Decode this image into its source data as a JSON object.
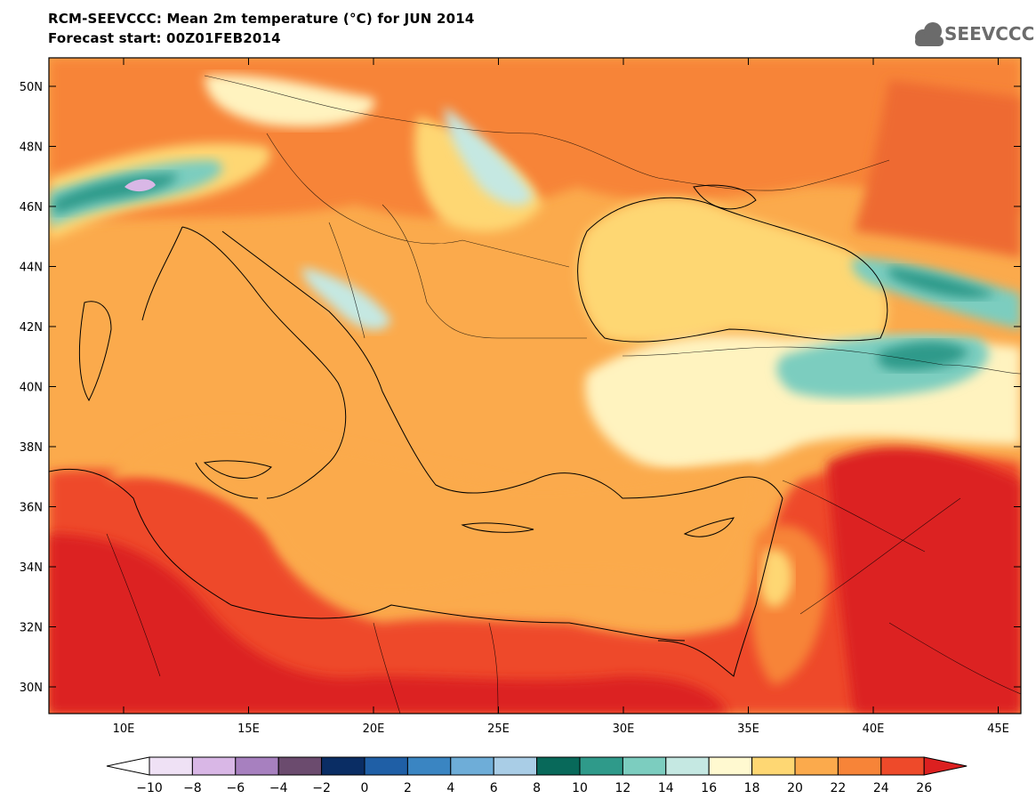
{
  "header": {
    "title_line1": "RCM-SEEVCCC: Mean 2m temperature (°C) for JUN 2014",
    "title_line2": "Forecast start: 00Z01FEB2014",
    "logo_text": "SEEVCCC"
  },
  "map": {
    "lat_labels": [
      "50N",
      "48N",
      "46N",
      "44N",
      "42N",
      "40N",
      "38N",
      "36N",
      "34N",
      "32N",
      "30N"
    ],
    "lon_labels": [
      "10E",
      "15E",
      "20E",
      "25E",
      "30E",
      "35E",
      "40E",
      "45E"
    ]
  },
  "colorbar": {
    "labels": [
      "−10",
      "−8",
      "−6",
      "−4",
      "−2",
      "0",
      "2",
      "4",
      "6",
      "8",
      "10",
      "12",
      "14",
      "16",
      "18",
      "20",
      "22",
      "24",
      "26"
    ],
    "colors": [
      "#ffffff",
      "#efe1f5",
      "#d9b7e6",
      "#a780bf",
      "#6b4b6e",
      "#0a2d64",
      "#1f5fa6",
      "#3a85c2",
      "#6eadd8",
      "#a9cde6",
      "#08695a",
      "#2f9a8a",
      "#7ccdbf",
      "#c5e8e2",
      "#fff9d0",
      "#fed773",
      "#fbaa4c",
      "#f78438",
      "#ee4a2a",
      "#dc2020"
    ]
  }
}
